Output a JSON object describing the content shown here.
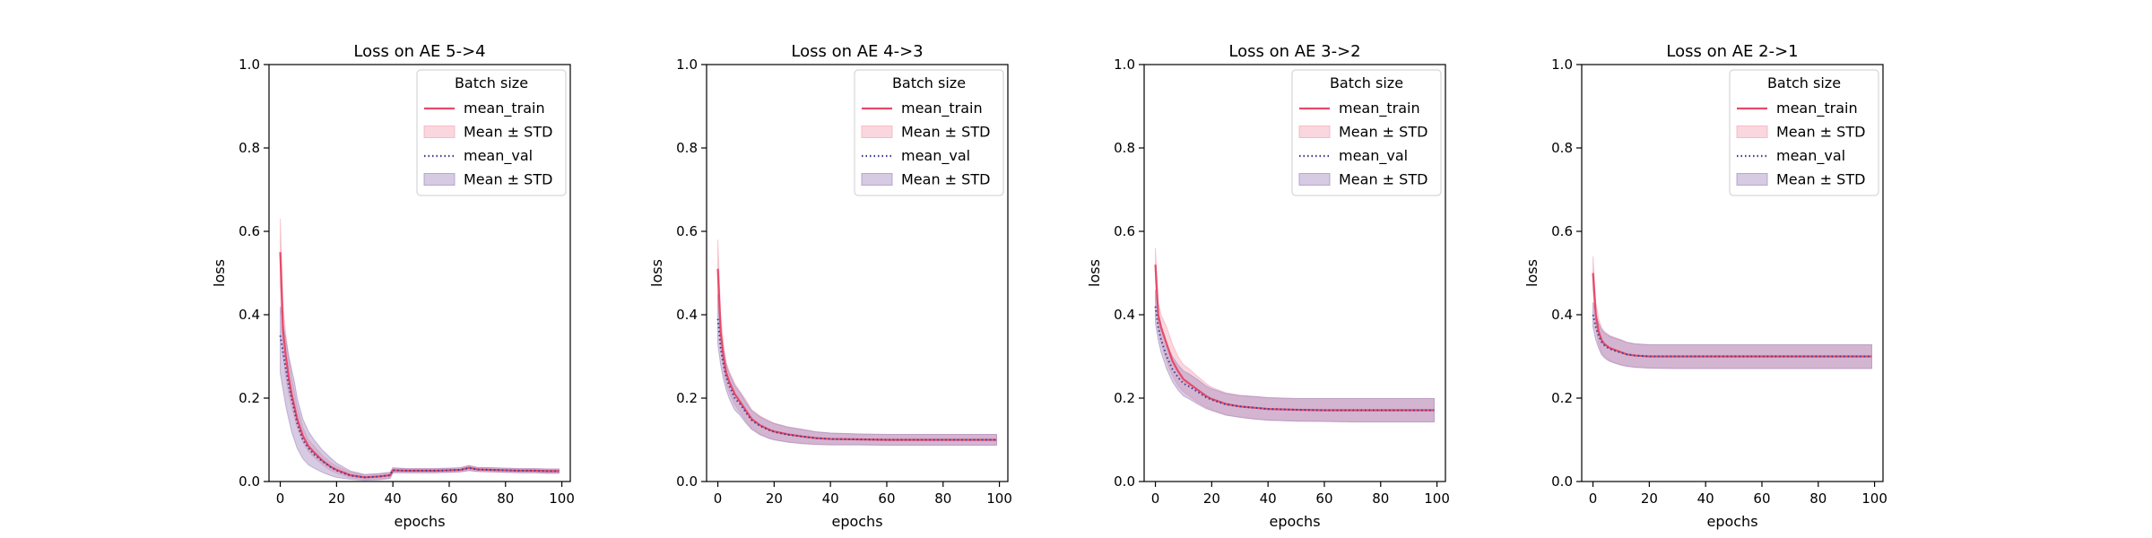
{
  "chart_data": [
    {
      "type": "line",
      "title": "Loss on AE 5->4",
      "xlabel": "epochs",
      "ylabel": "loss",
      "xlim": [
        -4,
        103
      ],
      "ylim": [
        0,
        1
      ],
      "xticks": [
        0,
        20,
        40,
        60,
        80,
        100
      ],
      "yticks": [
        0.0,
        0.2,
        0.4,
        0.6,
        0.8,
        1.0
      ],
      "grid": false,
      "legend": {
        "title": "Batch size",
        "placement": "upper-right",
        "entries": [
          "mean_train",
          "Mean ± STD",
          "mean_val",
          "Mean ± STD"
        ]
      },
      "series": [
        {
          "name": "mean_train",
          "style": "solid",
          "color": "#e8496a",
          "x": [
            0,
            1,
            2,
            3,
            4,
            5,
            6,
            8,
            10,
            12,
            15,
            18,
            20,
            25,
            30,
            35,
            39,
            40,
            45,
            50,
            55,
            60,
            64,
            67,
            70,
            75,
            80,
            85,
            90,
            95,
            99
          ],
          "y": [
            0.55,
            0.36,
            0.3,
            0.25,
            0.21,
            0.18,
            0.15,
            0.11,
            0.085,
            0.07,
            0.05,
            0.035,
            0.028,
            0.015,
            0.01,
            0.012,
            0.015,
            0.027,
            0.026,
            0.026,
            0.026,
            0.027,
            0.028,
            0.033,
            0.029,
            0.028,
            0.027,
            0.026,
            0.026,
            0.025,
            0.025
          ],
          "band": {
            "name": "Mean ± STD",
            "color": "#f4a6b5",
            "lower": [
              0.47,
              0.3,
              0.25,
              0.21,
              0.18,
              0.155,
              0.13,
              0.095,
              0.072,
              0.058,
              0.04,
              0.026,
              0.02,
              0.009,
              0.005,
              0.006,
              0.009,
              0.022,
              0.021,
              0.021,
              0.021,
              0.022,
              0.023,
              0.027,
              0.024,
              0.023,
              0.022,
              0.021,
              0.021,
              0.02,
              0.02
            ],
            "upper": [
              0.63,
              0.42,
              0.35,
              0.3,
              0.25,
              0.215,
              0.18,
              0.13,
              0.1,
              0.085,
              0.062,
              0.045,
              0.037,
              0.022,
              0.016,
              0.018,
              0.021,
              0.032,
              0.031,
              0.031,
              0.031,
              0.032,
              0.033,
              0.039,
              0.034,
              0.033,
              0.032,
              0.031,
              0.031,
              0.03,
              0.03
            ]
          }
        },
        {
          "name": "mean_val",
          "style": "dotted",
          "color": "#3d3d8f",
          "x": [
            0,
            1,
            2,
            3,
            4,
            5,
            6,
            8,
            10,
            12,
            15,
            18,
            20,
            25,
            30,
            35,
            39,
            40,
            45,
            50,
            55,
            60,
            64,
            67,
            70,
            75,
            80,
            85,
            90,
            95,
            99
          ],
          "y": [
            0.35,
            0.31,
            0.27,
            0.23,
            0.2,
            0.17,
            0.14,
            0.1,
            0.08,
            0.065,
            0.048,
            0.034,
            0.026,
            0.014,
            0.01,
            0.012,
            0.015,
            0.027,
            0.026,
            0.026,
            0.026,
            0.027,
            0.028,
            0.032,
            0.029,
            0.028,
            0.027,
            0.026,
            0.026,
            0.025,
            0.025
          ],
          "band": {
            "name": "Mean ± STD",
            "color": "#a48cc0",
            "lower": [
              0.26,
              0.22,
              0.18,
              0.15,
              0.12,
              0.1,
              0.08,
              0.055,
              0.04,
              0.032,
              0.022,
              0.014,
              0.01,
              0.005,
              0.003,
              0.004,
              0.007,
              0.021,
              0.021,
              0.021,
              0.021,
              0.022,
              0.023,
              0.026,
              0.024,
              0.023,
              0.022,
              0.021,
              0.021,
              0.02,
              0.02
            ],
            "upper": [
              0.42,
              0.38,
              0.34,
              0.3,
              0.27,
              0.24,
              0.2,
              0.15,
              0.12,
              0.1,
              0.075,
              0.056,
              0.044,
              0.025,
              0.017,
              0.019,
              0.022,
              0.033,
              0.031,
              0.031,
              0.031,
              0.032,
              0.033,
              0.038,
              0.034,
              0.033,
              0.032,
              0.031,
              0.031,
              0.03,
              0.03
            ]
          }
        }
      ]
    },
    {
      "type": "line",
      "title": "Loss on AE 4->3",
      "xlabel": "epochs",
      "ylabel": "loss",
      "xlim": [
        -4,
        103
      ],
      "ylim": [
        0,
        1
      ],
      "xticks": [
        0,
        20,
        40,
        60,
        80,
        100
      ],
      "yticks": [
        0.0,
        0.2,
        0.4,
        0.6,
        0.8,
        1.0
      ],
      "grid": false,
      "legend": {
        "title": "Batch size",
        "placement": "upper-right",
        "entries": [
          "mean_train",
          "Mean ± STD",
          "mean_val",
          "Mean ± STD"
        ]
      },
      "series": [
        {
          "name": "mean_train",
          "style": "solid",
          "color": "#e8496a",
          "x": [
            0,
            1,
            2,
            3,
            4,
            5,
            6,
            8,
            10,
            12,
            15,
            18,
            20,
            25,
            30,
            35,
            40,
            50,
            60,
            70,
            80,
            90,
            99
          ],
          "y": [
            0.51,
            0.36,
            0.3,
            0.26,
            0.24,
            0.225,
            0.21,
            0.19,
            0.17,
            0.15,
            0.135,
            0.125,
            0.12,
            0.113,
            0.108,
            0.104,
            0.102,
            0.101,
            0.1,
            0.1,
            0.1,
            0.1,
            0.1
          ],
          "band": {
            "name": "Mean ± STD",
            "color": "#f4a6b5",
            "lower": [
              0.44,
              0.32,
              0.27,
              0.235,
              0.215,
              0.2,
              0.185,
              0.165,
              0.145,
              0.128,
              0.113,
              0.104,
              0.1,
              0.095,
              0.091,
              0.089,
              0.088,
              0.088,
              0.087,
              0.087,
              0.087,
              0.087,
              0.087
            ],
            "upper": [
              0.58,
              0.4,
              0.33,
              0.285,
              0.265,
              0.25,
              0.235,
              0.215,
              0.195,
              0.172,
              0.157,
              0.146,
              0.14,
              0.131,
              0.125,
              0.119,
              0.116,
              0.114,
              0.113,
              0.113,
              0.113,
              0.113,
              0.113
            ]
          }
        },
        {
          "name": "mean_val",
          "style": "dotted",
          "color": "#3d3d8f",
          "x": [
            0,
            1,
            2,
            3,
            4,
            5,
            6,
            8,
            10,
            12,
            15,
            18,
            20,
            25,
            30,
            35,
            40,
            50,
            60,
            70,
            80,
            90,
            99
          ],
          "y": [
            0.39,
            0.32,
            0.28,
            0.25,
            0.23,
            0.215,
            0.2,
            0.185,
            0.165,
            0.147,
            0.133,
            0.124,
            0.119,
            0.112,
            0.108,
            0.104,
            0.102,
            0.101,
            0.1,
            0.1,
            0.1,
            0.1,
            0.1
          ],
          "band": {
            "name": "Mean ± STD",
            "color": "#a48cc0",
            "lower": [
              0.33,
              0.28,
              0.245,
              0.22,
              0.2,
              0.185,
              0.172,
              0.158,
              0.14,
              0.125,
              0.112,
              0.104,
              0.1,
              0.094,
              0.091,
              0.089,
              0.088,
              0.088,
              0.087,
              0.087,
              0.087,
              0.087,
              0.087
            ],
            "upper": [
              0.45,
              0.36,
              0.315,
              0.28,
              0.26,
              0.245,
              0.23,
              0.212,
              0.19,
              0.17,
              0.155,
              0.145,
              0.139,
              0.13,
              0.125,
              0.119,
              0.116,
              0.114,
              0.113,
              0.113,
              0.113,
              0.113,
              0.113
            ]
          }
        }
      ]
    },
    {
      "type": "line",
      "title": "Loss on AE 3->2",
      "xlabel": "epochs",
      "ylabel": "loss",
      "xlim": [
        -4,
        103
      ],
      "ylim": [
        0,
        1
      ],
      "xticks": [
        0,
        20,
        40,
        60,
        80,
        100
      ],
      "yticks": [
        0.0,
        0.2,
        0.4,
        0.6,
        0.8,
        1.0
      ],
      "grid": false,
      "legend": {
        "title": "Batch size",
        "placement": "upper-right",
        "entries": [
          "mean_train",
          "Mean ± STD",
          "mean_val",
          "Mean ± STD"
        ]
      },
      "series": [
        {
          "name": "mean_train",
          "style": "solid",
          "color": "#e8496a",
          "x": [
            0,
            1,
            2,
            3,
            4,
            5,
            6,
            8,
            10,
            12,
            15,
            18,
            20,
            25,
            30,
            35,
            40,
            50,
            60,
            70,
            80,
            90,
            99
          ],
          "y": [
            0.52,
            0.4,
            0.37,
            0.35,
            0.33,
            0.31,
            0.29,
            0.265,
            0.245,
            0.235,
            0.22,
            0.205,
            0.198,
            0.186,
            0.18,
            0.177,
            0.174,
            0.172,
            0.171,
            0.171,
            0.171,
            0.171,
            0.171
          ],
          "band": {
            "name": "Mean ± STD",
            "color": "#f4a6b5",
            "lower": [
              0.48,
              0.37,
              0.335,
              0.31,
              0.29,
              0.27,
              0.255,
              0.23,
              0.215,
              0.205,
              0.19,
              0.178,
              0.172,
              0.16,
              0.154,
              0.15,
              0.147,
              0.145,
              0.144,
              0.143,
              0.143,
              0.143,
              0.143
            ],
            "upper": [
              0.56,
              0.43,
              0.4,
              0.385,
              0.37,
              0.35,
              0.33,
              0.3,
              0.28,
              0.27,
              0.252,
              0.235,
              0.226,
              0.213,
              0.207,
              0.204,
              0.201,
              0.199,
              0.199,
              0.199,
              0.199,
              0.199,
              0.199
            ]
          }
        },
        {
          "name": "mean_val",
          "style": "dotted",
          "color": "#3d3d8f",
          "x": [
            0,
            1,
            2,
            3,
            4,
            5,
            6,
            8,
            10,
            12,
            15,
            18,
            20,
            25,
            30,
            35,
            40,
            50,
            60,
            70,
            80,
            90,
            99
          ],
          "y": [
            0.42,
            0.37,
            0.34,
            0.32,
            0.3,
            0.285,
            0.27,
            0.25,
            0.235,
            0.228,
            0.215,
            0.202,
            0.196,
            0.185,
            0.18,
            0.177,
            0.174,
            0.172,
            0.171,
            0.171,
            0.171,
            0.171,
            0.171
          ],
          "band": {
            "name": "Mean ± STD",
            "color": "#a48cc0",
            "lower": [
              0.38,
              0.34,
              0.31,
              0.29,
              0.27,
              0.255,
              0.24,
              0.22,
              0.205,
              0.198,
              0.186,
              0.175,
              0.17,
              0.159,
              0.154,
              0.15,
              0.147,
              0.145,
              0.144,
              0.143,
              0.143,
              0.143,
              0.143
            ],
            "upper": [
              0.46,
              0.4,
              0.37,
              0.35,
              0.33,
              0.315,
              0.3,
              0.28,
              0.265,
              0.258,
              0.244,
              0.229,
              0.222,
              0.211,
              0.206,
              0.204,
              0.201,
              0.199,
              0.199,
              0.199,
              0.199,
              0.199,
              0.199
            ]
          }
        }
      ]
    },
    {
      "type": "line",
      "title": "Loss on AE 2->1",
      "xlabel": "epochs",
      "ylabel": "loss",
      "xlim": [
        -4,
        103
      ],
      "ylim": [
        0,
        1
      ],
      "xticks": [
        0,
        20,
        40,
        60,
        80,
        100
      ],
      "yticks": [
        0.0,
        0.2,
        0.4,
        0.6,
        0.8,
        1.0
      ],
      "grid": false,
      "legend": {
        "title": "Batch size",
        "placement": "upper-right",
        "entries": [
          "mean_train",
          "Mean ± STD",
          "mean_val",
          "Mean ± STD"
        ]
      },
      "series": [
        {
          "name": "mean_train",
          "style": "solid",
          "color": "#e8496a",
          "x": [
            0,
            1,
            2,
            3,
            4,
            5,
            6,
            8,
            10,
            12,
            15,
            20,
            30,
            40,
            60,
            80,
            99
          ],
          "y": [
            0.5,
            0.4,
            0.36,
            0.34,
            0.33,
            0.325,
            0.32,
            0.315,
            0.31,
            0.305,
            0.302,
            0.3,
            0.3,
            0.3,
            0.3,
            0.3,
            0.3
          ],
          "band": {
            "name": "Mean ± STD",
            "color": "#f4a6b5",
            "lower": [
              0.46,
              0.37,
              0.33,
              0.31,
              0.3,
              0.295,
              0.29,
              0.285,
              0.28,
              0.277,
              0.274,
              0.272,
              0.271,
              0.271,
              0.271,
              0.271,
              0.271
            ],
            "upper": [
              0.54,
              0.43,
              0.39,
              0.37,
              0.36,
              0.355,
              0.35,
              0.345,
              0.34,
              0.334,
              0.33,
              0.328,
              0.328,
              0.328,
              0.328,
              0.328,
              0.328
            ]
          }
        },
        {
          "name": "mean_val",
          "style": "dotted",
          "color": "#3d3d8f",
          "x": [
            0,
            1,
            2,
            3,
            4,
            5,
            6,
            8,
            10,
            12,
            15,
            20,
            30,
            40,
            60,
            80,
            99
          ],
          "y": [
            0.4,
            0.37,
            0.35,
            0.335,
            0.327,
            0.322,
            0.318,
            0.313,
            0.309,
            0.305,
            0.302,
            0.3,
            0.3,
            0.3,
            0.3,
            0.3,
            0.3
          ],
          "band": {
            "name": "Mean ± STD",
            "color": "#a48cc0",
            "lower": [
              0.37,
              0.34,
              0.32,
              0.305,
              0.297,
              0.292,
              0.288,
              0.283,
              0.279,
              0.276,
              0.274,
              0.272,
              0.271,
              0.271,
              0.271,
              0.271,
              0.271
            ],
            "upper": [
              0.43,
              0.4,
              0.38,
              0.365,
              0.357,
              0.352,
              0.348,
              0.343,
              0.339,
              0.334,
              0.33,
              0.328,
              0.328,
              0.328,
              0.328,
              0.328,
              0.328
            ]
          }
        }
      ]
    }
  ]
}
